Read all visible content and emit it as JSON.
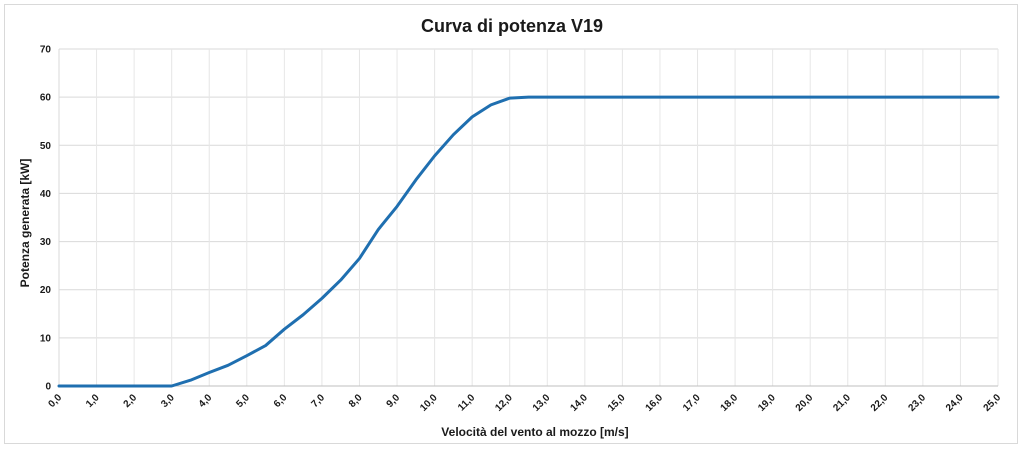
{
  "chart_data": {
    "type": "line",
    "title": "Curva di potenza V19",
    "xlabel": "Velocità del vento al mozzo [m/s]",
    "ylabel": "Potenza generata [kW]",
    "xlim": [
      0,
      25
    ],
    "ylim": [
      0,
      70
    ],
    "grid": true,
    "legend": "none",
    "x_tick_labels": [
      "0,0",
      "1,0",
      "2,0",
      "3,0",
      "4,0",
      "5,0",
      "6,0",
      "7,0",
      "8,0",
      "9,0",
      "10,0",
      "11,0",
      "12,0",
      "13,0",
      "14,0",
      "15,0",
      "16,0",
      "17,0",
      "18,0",
      "19,0",
      "20,0",
      "21,0",
      "22,0",
      "23,0",
      "24,0",
      "25,0"
    ],
    "y_tick_labels": [
      "0",
      "10",
      "20",
      "30",
      "40",
      "50",
      "60",
      "70"
    ],
    "series": [
      {
        "color": "#1f6fb0",
        "x": [
          0,
          0.5,
          1,
          1.5,
          2,
          2.5,
          3,
          3.5,
          4,
          4.5,
          5,
          5.5,
          6,
          6.5,
          7,
          7.5,
          8,
          8.5,
          9,
          9.5,
          10,
          10.5,
          11,
          11.5,
          12,
          12.5,
          13,
          14,
          15,
          16,
          17,
          18,
          19,
          20,
          21,
          22,
          23,
          24,
          25
        ],
        "y": [
          0,
          0,
          0,
          0,
          0,
          0,
          0,
          1.2,
          2.8,
          4.3,
          6.3,
          8.4,
          11.8,
          14.8,
          18.2,
          22.0,
          26.5,
          32.5,
          37.3,
          42.8,
          47.8,
          52.2,
          55.9,
          58.4,
          59.8,
          60,
          60,
          60,
          60,
          60,
          60,
          60,
          60,
          60,
          60,
          60,
          60,
          60,
          60
        ]
      }
    ]
  }
}
